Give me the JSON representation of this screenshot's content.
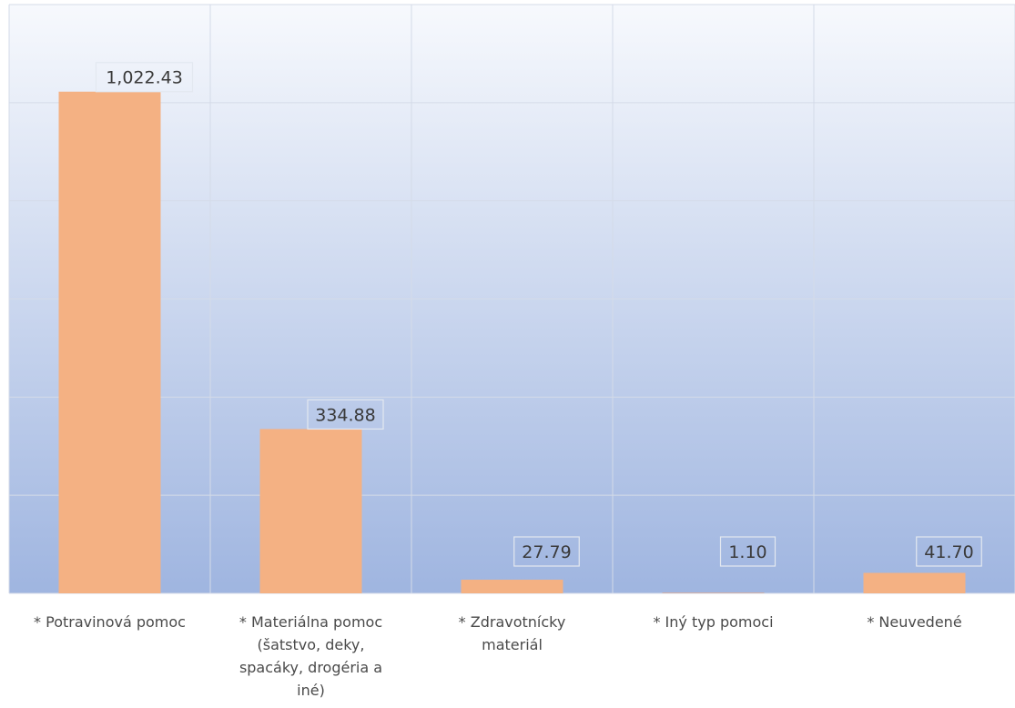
{
  "chart_data": {
    "type": "bar",
    "categories": [
      [
        "* Potravinová pomoc"
      ],
      [
        "* Materiálna pomoc",
        "(šatstvo, deky,",
        "spacáky, drogéria a",
        "iné)"
      ],
      [
        "* Zdravotnícky",
        "materiál"
      ],
      [
        "* Iný typ pomoci"
      ],
      [
        "* Neuvedené"
      ]
    ],
    "values": [
      1022.43,
      334.88,
      27.79,
      1.1,
      41.7
    ],
    "value_labels": [
      "1,022.43",
      "334.88",
      "27.79",
      "1.10",
      "41.70"
    ],
    "ylim": [
      0,
      1200
    ],
    "grid": true,
    "colors": {
      "bar": "#f4b183",
      "background_top": "#f7f9fd",
      "background_bottom": "#9fb5e0",
      "grid": "#d4dbe8",
      "label_box": "#e3e8f0"
    }
  }
}
